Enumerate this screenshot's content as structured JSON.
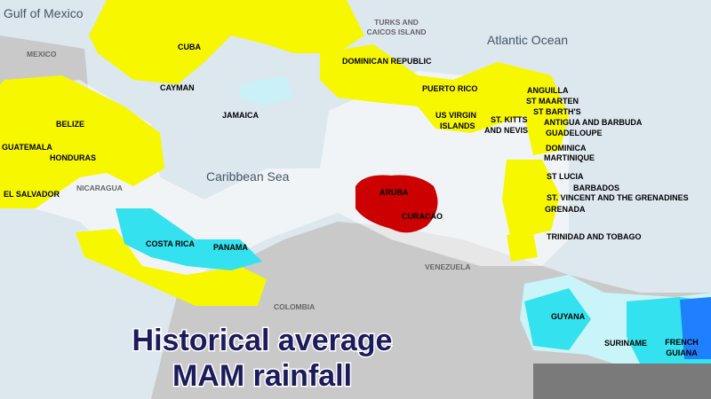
{
  "title": {
    "lines": [
      "Historical average",
      "MAM rainfall"
    ]
  },
  "water_labels": [
    "Gulf of Mexico",
    "Atlantic Ocean",
    "Caribbean Sea"
  ],
  "country_labels": [
    {
      "lines": [
        "MEXICO"
      ]
    },
    {
      "lines": [
        "TURKS AND",
        "CAICOS ISLAND"
      ]
    },
    {
      "lines": [
        "CUBA"
      ]
    },
    {
      "lines": [
        "DOMINICAN REPUBLIC"
      ]
    },
    {
      "lines": [
        "CAYMAN"
      ]
    },
    {
      "lines": [
        "PUERTO RICO"
      ]
    },
    {
      "lines": [
        "ANGUILLA"
      ]
    },
    {
      "lines": [
        "ST MAARTEN"
      ]
    },
    {
      "lines": [
        "ST BARTH'S"
      ]
    },
    {
      "lines": [
        "ANTIGUA AND BARBUDA"
      ]
    },
    {
      "lines": [
        "JAMAICA"
      ]
    },
    {
      "lines": [
        "US VIRGIN",
        "ISLANDS"
      ]
    },
    {
      "lines": [
        "ST. KITTS",
        "AND NEVIS"
      ]
    },
    {
      "lines": [
        "GUADELOUPE"
      ]
    },
    {
      "lines": [
        "BELIZE"
      ]
    },
    {
      "lines": [
        "DOMINICA"
      ]
    },
    {
      "lines": [
        "MARTINIQUE"
      ]
    },
    {
      "lines": [
        "GUATEMALA"
      ]
    },
    {
      "lines": [
        "HONDURAS"
      ]
    },
    {
      "lines": [
        "ST LUCIA"
      ]
    },
    {
      "lines": [
        "BARBADOS"
      ]
    },
    {
      "lines": [
        "ST. VINCENT AND THE GRENADINES"
      ]
    },
    {
      "lines": [
        "EL SALVADOR"
      ]
    },
    {
      "lines": [
        "NICARAGUA"
      ]
    },
    {
      "lines": [
        "ARUBA"
      ]
    },
    {
      "lines": [
        "CURACAO"
      ]
    },
    {
      "lines": [
        "GRENADA"
      ]
    },
    {
      "lines": [
        "COSTA RICA"
      ]
    },
    {
      "lines": [
        "PANAMA"
      ]
    },
    {
      "lines": [
        "TRINIDAD AND TOBAGO"
      ]
    },
    {
      "lines": [
        "VENEZUELA"
      ]
    },
    {
      "lines": [
        "COLOMBIA"
      ]
    },
    {
      "lines": [
        "GUYANA"
      ]
    },
    {
      "lines": [
        "SURINAME"
      ]
    },
    {
      "lines": [
        "FRENCH",
        "GUIANA"
      ]
    }
  ]
}
